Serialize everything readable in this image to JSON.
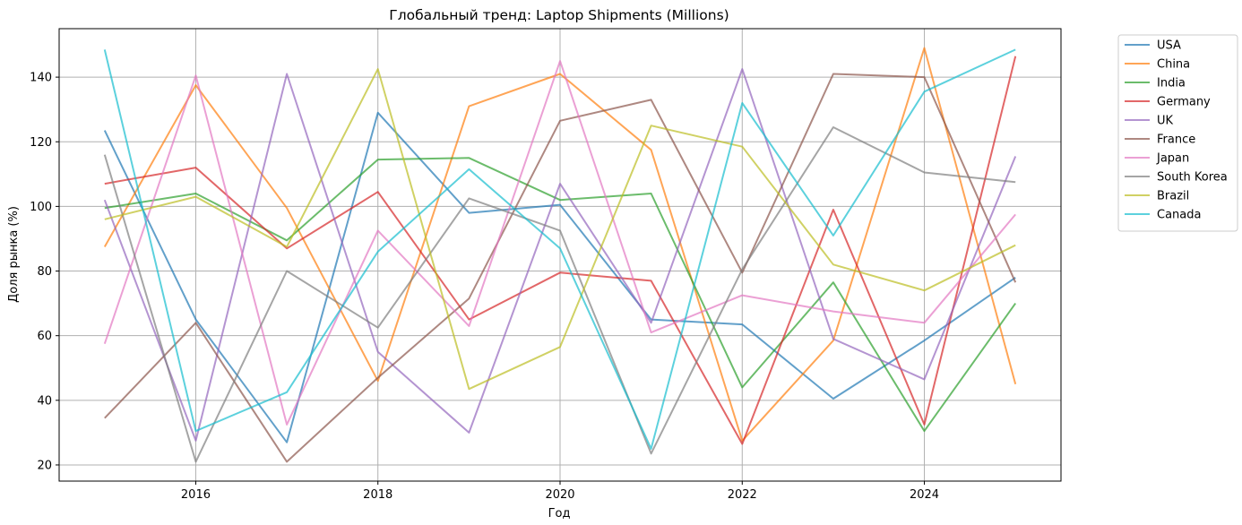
{
  "chart_data": {
    "type": "line",
    "title": "Глобальный тренд: Laptop Shipments (Millions)",
    "xlabel": "Год",
    "ylabel": "Доля рынка (%)",
    "xlim": [
      2014.5,
      2025.5
    ],
    "ylim": [
      15,
      155
    ],
    "x_ticks": [
      2016,
      2018,
      2020,
      2022,
      2024
    ],
    "y_ticks": [
      20,
      40,
      60,
      80,
      100,
      120,
      140
    ],
    "grid": true,
    "legend_position": "outside-top-right",
    "x": [
      2015,
      2016,
      2017,
      2018,
      2019,
      2020,
      2021,
      2022,
      2023,
      2024,
      2025
    ],
    "series": [
      {
        "name": "USA",
        "color": "#1f77b4",
        "values": [
          123.5,
          65.0,
          27.0,
          129.0,
          98.0,
          100.5,
          65.0,
          63.5,
          40.5,
          58.5,
          78.0
        ]
      },
      {
        "name": "China",
        "color": "#ff7f0e",
        "values": [
          87.5,
          137.5,
          99.5,
          46.0,
          131.0,
          141.0,
          117.5,
          27.5,
          58.5,
          149.0,
          45.0
        ]
      },
      {
        "name": "India",
        "color": "#2ca02c",
        "values": [
          99.5,
          104.0,
          89.5,
          114.5,
          115.0,
          102.0,
          104.0,
          44.0,
          76.5,
          30.5,
          70.0
        ]
      },
      {
        "name": "Germany",
        "color": "#d62728",
        "values": [
          107.0,
          112.0,
          87.0,
          104.5,
          65.0,
          79.5,
          77.0,
          26.5,
          99.0,
          32.5,
          146.5
        ]
      },
      {
        "name": "UK",
        "color": "#9467bd",
        "values": [
          102.0,
          27.5,
          141.0,
          55.0,
          30.0,
          107.0,
          64.0,
          142.5,
          59.0,
          46.5,
          115.5
        ]
      },
      {
        "name": "France",
        "color": "#8c564b",
        "values": [
          34.5,
          64.0,
          21.0,
          47.0,
          71.5,
          126.5,
          133.0,
          79.5,
          141.0,
          140.0,
          76.5
        ]
      },
      {
        "name": "Japan",
        "color": "#e377c2",
        "values": [
          57.5,
          140.5,
          32.5,
          92.5,
          63.0,
          145.0,
          61.0,
          72.5,
          67.5,
          64.0,
          97.5
        ]
      },
      {
        "name": "South Korea",
        "color": "#7f7f7f",
        "values": [
          116.0,
          21.0,
          80.0,
          62.5,
          102.5,
          92.5,
          23.5,
          80.5,
          124.5,
          110.5,
          107.5
        ]
      },
      {
        "name": "Brazil",
        "color": "#bcbd22",
        "values": [
          96.0,
          103.0,
          87.5,
          142.5,
          43.5,
          56.5,
          125.0,
          118.5,
          82.0,
          74.0,
          88.0
        ]
      },
      {
        "name": "Canada",
        "color": "#17becf",
        "values": [
          148.5,
          30.5,
          42.5,
          86.0,
          111.5,
          87.0,
          25.0,
          132.0,
          91.0,
          135.5,
          148.5
        ]
      }
    ]
  }
}
